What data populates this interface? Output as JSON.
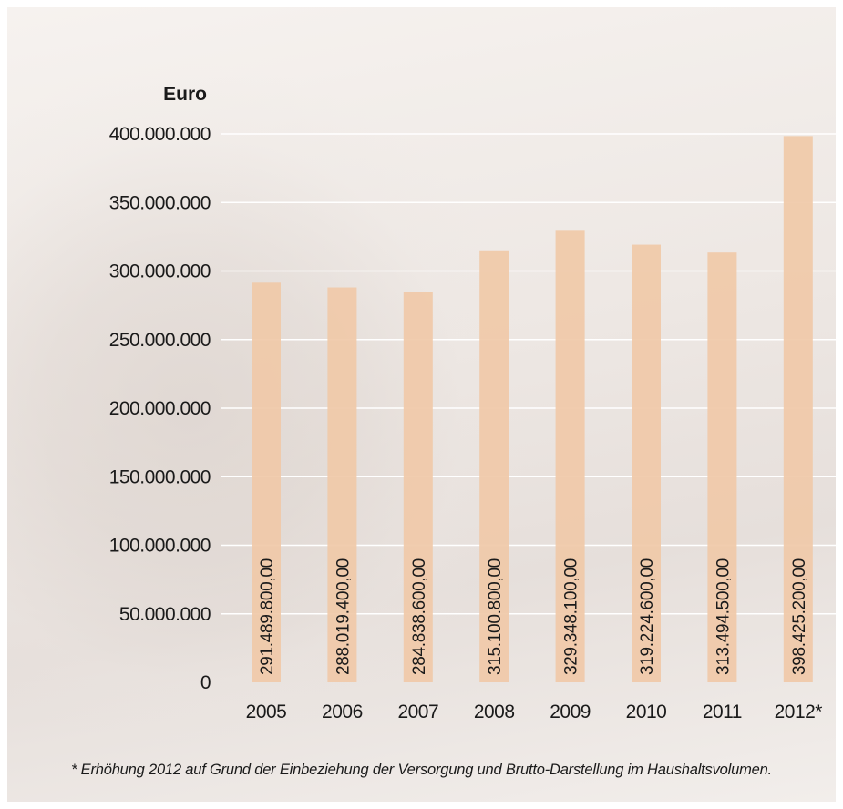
{
  "chart_data": {
    "type": "bar",
    "ylabel": "Euro",
    "categories": [
      "2005",
      "2006",
      "2007",
      "2008",
      "2009",
      "2010",
      "2011",
      "2012*"
    ],
    "values": [
      291489800,
      288019400,
      284838600,
      315100800,
      329348100,
      319224600,
      313494500,
      398425200
    ],
    "value_labels": [
      "291.489.800,00",
      "288.019.400,00",
      "284.838.600,00",
      "315.100.800,00",
      "329.348.100,00",
      "319.224.600,00",
      "313.494.500,00",
      "398.425.200,00"
    ],
    "ylim": [
      0,
      400000000
    ],
    "yticks": [
      0,
      50000000,
      100000000,
      150000000,
      200000000,
      250000000,
      300000000,
      350000000,
      400000000
    ],
    "ytick_labels": [
      "0",
      "50.000.000",
      "100.000.000",
      "150.000.000",
      "200.000.000",
      "250.000.000",
      "300.000.000",
      "350.000.000",
      "400.000.000"
    ],
    "grid": true,
    "bar_color": "#f0c9a8"
  },
  "footnote": "* Erhöhung 2012 auf Grund der Einbeziehung der Versorgung und Brutto-Darstellung im Haushaltsvolumen."
}
